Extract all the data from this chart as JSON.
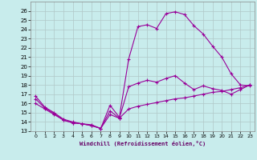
{
  "bg_color": "#c8ecec",
  "line_color": "#990099",
  "grid_color": "#b0c8c8",
  "xlim": [
    -0.5,
    23.5
  ],
  "ylim": [
    13,
    27
  ],
  "xticks": [
    0,
    1,
    2,
    3,
    4,
    5,
    6,
    7,
    8,
    9,
    10,
    11,
    12,
    13,
    14,
    15,
    16,
    17,
    18,
    19,
    20,
    21,
    22,
    23
  ],
  "yticks": [
    13,
    14,
    15,
    16,
    17,
    18,
    19,
    20,
    21,
    22,
    23,
    24,
    25,
    26
  ],
  "xlabel": "Windchill (Refroidissement éolien,°C)",
  "curve1_x": [
    0,
    1,
    2,
    3,
    4,
    5,
    6,
    7,
    8,
    9,
    10,
    11,
    12,
    13,
    14,
    15,
    16,
    17,
    18,
    19,
    20,
    21,
    22,
    23
  ],
  "curve1_y": [
    16.8,
    15.6,
    15.0,
    14.3,
    14.0,
    13.8,
    13.7,
    13.3,
    15.8,
    14.5,
    20.8,
    24.3,
    24.5,
    24.1,
    25.7,
    25.9,
    25.6,
    24.4,
    23.5,
    22.2,
    21.0,
    19.2,
    18.0,
    17.9
  ],
  "curve2_x": [
    0,
    1,
    2,
    3,
    4,
    5,
    6,
    7,
    8,
    9,
    10,
    11,
    12,
    13,
    14,
    15,
    16,
    17,
    18,
    19,
    20,
    21,
    22,
    23
  ],
  "curve2_y": [
    16.5,
    15.5,
    14.9,
    14.2,
    13.9,
    13.8,
    13.6,
    13.3,
    15.2,
    14.4,
    17.8,
    18.2,
    18.5,
    18.3,
    18.7,
    19.0,
    18.2,
    17.5,
    17.9,
    17.6,
    17.4,
    17.0,
    17.5,
    18.0
  ],
  "curve3_x": [
    0,
    1,
    2,
    3,
    4,
    5,
    6,
    7,
    8,
    9,
    10,
    11,
    12,
    13,
    14,
    15,
    16,
    17,
    18,
    19,
    20,
    21,
    22,
    23
  ],
  "curve3_y": [
    16.0,
    15.4,
    14.8,
    14.2,
    13.9,
    13.8,
    13.6,
    13.3,
    14.8,
    14.4,
    15.4,
    15.7,
    15.9,
    16.1,
    16.3,
    16.5,
    16.6,
    16.8,
    17.0,
    17.2,
    17.3,
    17.5,
    17.7,
    18.0
  ]
}
